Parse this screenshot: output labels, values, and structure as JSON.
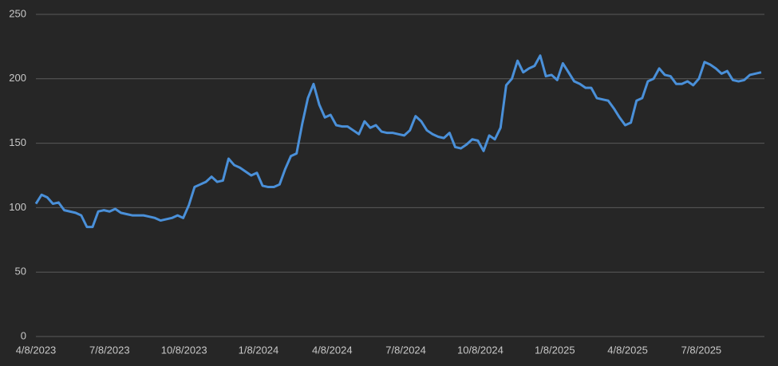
{
  "chart_data": {
    "type": "line",
    "color": "#4a90d9",
    "grid": true,
    "ylim": [
      0,
      250
    ],
    "yticks": [
      0,
      50,
      100,
      150,
      200,
      250
    ],
    "xlim": [
      "4/8/2023",
      "9/24/2025"
    ],
    "xticks": [
      "4/8/2023",
      "7/8/2023",
      "10/8/2023",
      "1/8/2024",
      "4/8/2024",
      "7/8/2024",
      "10/8/2024",
      "1/8/2025",
      "4/8/2025",
      "7/8/2025"
    ],
    "x": [
      "4/8/2023",
      "4/15/2023",
      "4/22/2023",
      "4/29/2023",
      "5/6/2023",
      "5/13/2023",
      "5/20/2023",
      "5/27/2023",
      "6/3/2023",
      "6/10/2023",
      "6/17/2023",
      "6/24/2023",
      "7/1/2023",
      "7/8/2023",
      "7/15/2023",
      "7/22/2023",
      "7/29/2023",
      "8/5/2023",
      "8/12/2023",
      "8/19/2023",
      "8/26/2023",
      "9/2/2023",
      "9/9/2023",
      "9/16/2023",
      "9/23/2023",
      "9/30/2023",
      "10/7/2023",
      "10/14/2023",
      "10/21/2023",
      "10/28/2023",
      "11/4/2023",
      "11/11/2023",
      "11/18/2023",
      "11/25/2023",
      "12/2/2023",
      "12/9/2023",
      "12/16/2023",
      "12/23/2023",
      "12/30/2023",
      "1/6/2024",
      "1/13/2024",
      "1/20/2024",
      "1/27/2024",
      "2/3/2024",
      "2/10/2024",
      "2/17/2024",
      "2/24/2024",
      "3/2/2024",
      "3/9/2024",
      "3/16/2024",
      "3/23/2024",
      "3/30/2024",
      "4/6/2024",
      "4/13/2024",
      "4/20/2024",
      "4/27/2024",
      "5/4/2024",
      "5/11/2024",
      "5/18/2024",
      "5/25/2024",
      "6/1/2024",
      "6/8/2024",
      "6/15/2024",
      "6/22/2024",
      "6/29/2024",
      "7/6/2024",
      "7/13/2024",
      "7/20/2024",
      "7/27/2024",
      "8/3/2024",
      "8/10/2024",
      "8/17/2024",
      "8/24/2024",
      "8/31/2024",
      "9/7/2024",
      "9/14/2024",
      "9/21/2024",
      "9/28/2024",
      "10/5/2024",
      "10/12/2024",
      "10/19/2024",
      "10/26/2024",
      "11/2/2024",
      "11/9/2024",
      "11/16/2024",
      "11/23/2024",
      "11/30/2024",
      "12/7/2024",
      "12/14/2024",
      "12/21/2024",
      "12/28/2024",
      "1/4/2025",
      "1/11/2025",
      "1/18/2025",
      "1/25/2025",
      "2/1/2025",
      "2/8/2025",
      "2/15/2025",
      "2/22/2025",
      "3/1/2025",
      "3/8/2025",
      "3/15/2025",
      "3/22/2025",
      "3/29/2025",
      "4/5/2025",
      "4/12/2025",
      "4/19/2025",
      "4/26/2025",
      "5/3/2025",
      "5/10/2025",
      "5/17/2025",
      "5/24/2025",
      "5/31/2025",
      "6/7/2025",
      "6/14/2025",
      "6/21/2025",
      "6/28/2025",
      "7/5/2025",
      "7/12/2025",
      "7/19/2025",
      "7/26/2025",
      "8/2/2025",
      "8/9/2025",
      "8/16/2025",
      "8/23/2025",
      "8/30/2025",
      "9/6/2025",
      "9/13/2025",
      "9/20/2025"
    ],
    "values": [
      103,
      110,
      108,
      103,
      104,
      98,
      97,
      96,
      94,
      85,
      85,
      97,
      98,
      97,
      99,
      96,
      95,
      94,
      94,
      94,
      93,
      92,
      90,
      91,
      92,
      94,
      92,
      102,
      116,
      118,
      120,
      124,
      120,
      121,
      138,
      133,
      131,
      128,
      125,
      127,
      117,
      116,
      116,
      118,
      130,
      140,
      142,
      165,
      185,
      196,
      180,
      170,
      172,
      164,
      163,
      163,
      160,
      157,
      167,
      162,
      164,
      159,
      158,
      158,
      157,
      156,
      160,
      171,
      167,
      160,
      157,
      155,
      154,
      158,
      147,
      146,
      149,
      153,
      152,
      144,
      156,
      153,
      162,
      195,
      200,
      214,
      205,
      208,
      210,
      218,
      202,
      203,
      199,
      212,
      205,
      198,
      196,
      193,
      193,
      185,
      184,
      183,
      177,
      170,
      164,
      166,
      183,
      185,
      198,
      200,
      208,
      203,
      202,
      196,
      196,
      198,
      195,
      200,
      213,
      211,
      208,
      204,
      206,
      199,
      198,
      199,
      203,
      204,
      205
    ]
  }
}
